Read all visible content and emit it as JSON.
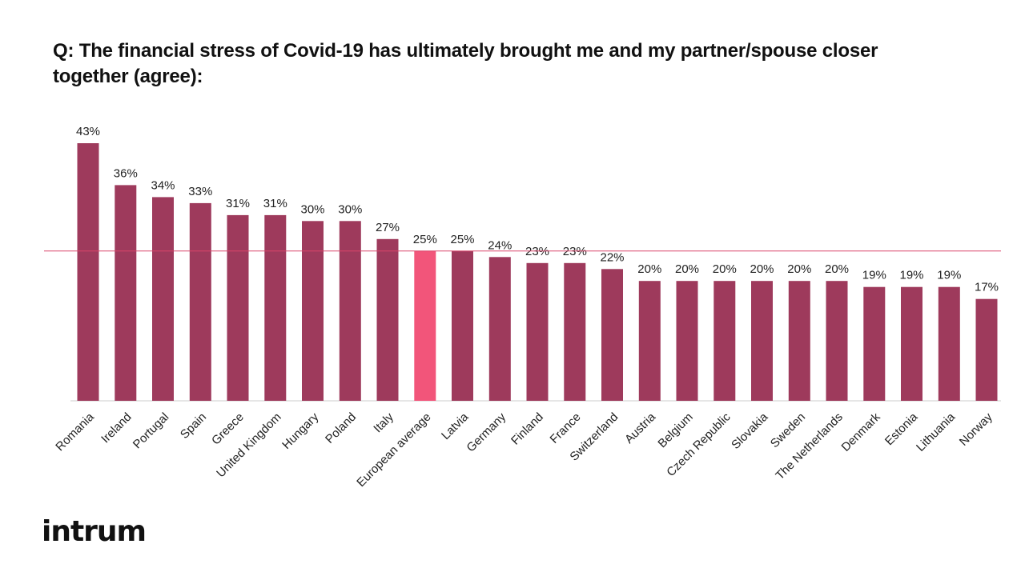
{
  "chart_data": {
    "type": "bar",
    "title": "Q: The financial stress of Covid-19 has ultimately brought me and my partner/spouse closer together (agree):",
    "categories": [
      "Romania",
      "Ireland",
      "Portugal",
      "Spain",
      "Greece",
      "United Kingdom",
      "Hungary",
      "Poland",
      "Italy",
      "European average",
      "Latvia",
      "Germany",
      "Finland",
      "France",
      "Switzerland",
      "Austria",
      "Belgium",
      "Czech Republic",
      "Slovakia",
      "Sweden",
      "The Netherlands",
      "Denmark",
      "Estonia",
      "Lithuania",
      "Norway"
    ],
    "values": [
      43,
      36,
      34,
      33,
      31,
      31,
      30,
      30,
      27,
      25,
      25,
      24,
      23,
      23,
      22,
      20,
      20,
      20,
      20,
      20,
      20,
      19,
      19,
      19,
      17
    ],
    "labels": [
      "43%",
      "36%",
      "34%",
      "33%",
      "31%",
      "31%",
      "30%",
      "30%",
      "27%",
      "25%",
      "25%",
      "24%",
      "23%",
      "23%",
      "22%",
      "20%",
      "20%",
      "20%",
      "20%",
      "20%",
      "20%",
      "19%",
      "19%",
      "19%",
      "17%"
    ],
    "highlight_category": "European average",
    "reference_line": 25,
    "ylim": [
      0,
      43
    ],
    "xlabel": "",
    "ylabel": "",
    "grid": false,
    "colors": {
      "bar": "#9e3a5c",
      "highlight": "#f2557a",
      "reference_line": "#d9456a",
      "axis": "#cccccc"
    }
  },
  "logo": "intrum"
}
